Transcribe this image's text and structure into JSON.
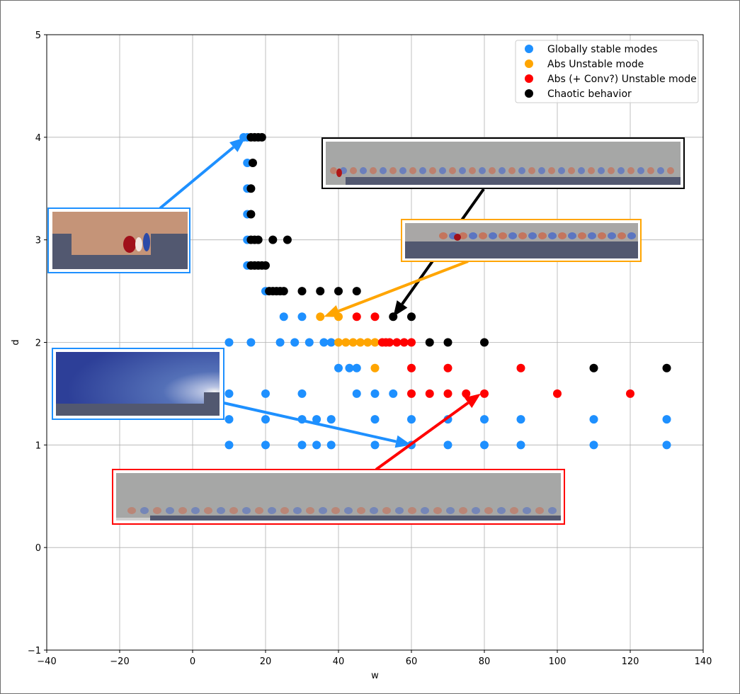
{
  "chart_data": {
    "type": "scatter",
    "title": "",
    "xlabel": "w",
    "ylabel": "d",
    "xlim": [
      -40,
      140
    ],
    "ylim": [
      -1,
      5
    ],
    "xticks": [
      -40,
      -20,
      0,
      20,
      40,
      60,
      80,
      100,
      120,
      140
    ],
    "yticks": [
      -1,
      0,
      1,
      2,
      3,
      4,
      5
    ],
    "xtick_labels": [
      "−40",
      "−20",
      "0",
      "20",
      "40",
      "60",
      "80",
      "100",
      "120",
      "140"
    ],
    "ytick_labels": [
      "−1",
      "0",
      "1",
      "2",
      "3",
      "4",
      "5"
    ],
    "grid": true,
    "legend_position": "top-right",
    "series": [
      {
        "name": "Globally stable modes",
        "color": "#1e90ff",
        "points": [
          [
            10,
            1
          ],
          [
            20,
            1
          ],
          [
            30,
            1
          ],
          [
            34,
            1
          ],
          [
            38,
            1
          ],
          [
            50,
            1
          ],
          [
            60,
            1
          ],
          [
            70,
            1
          ],
          [
            80,
            1
          ],
          [
            90,
            1
          ],
          [
            110,
            1
          ],
          [
            130,
            1
          ],
          [
            10,
            1.25
          ],
          [
            20,
            1.25
          ],
          [
            30,
            1.25
          ],
          [
            34,
            1.25
          ],
          [
            38,
            1.25
          ],
          [
            50,
            1.25
          ],
          [
            60,
            1.25
          ],
          [
            70,
            1.25
          ],
          [
            80,
            1.25
          ],
          [
            90,
            1.25
          ],
          [
            110,
            1.25
          ],
          [
            130,
            1.25
          ],
          [
            10,
            1.5
          ],
          [
            20,
            1.5
          ],
          [
            30,
            1.5
          ],
          [
            45,
            1.5
          ],
          [
            50,
            1.5
          ],
          [
            55,
            1.5
          ],
          [
            40,
            1.75
          ],
          [
            43,
            1.75
          ],
          [
            45,
            1.75
          ],
          [
            10,
            2
          ],
          [
            16,
            2
          ],
          [
            24,
            2
          ],
          [
            28,
            2
          ],
          [
            32,
            2
          ],
          [
            36,
            2
          ],
          [
            38,
            2
          ],
          [
            25,
            2.25
          ],
          [
            30,
            2.25
          ],
          [
            20,
            2.5
          ],
          [
            15,
            2.75
          ],
          [
            15,
            3
          ],
          [
            15,
            3.25
          ],
          [
            15,
            3.5
          ],
          [
            15,
            3.75
          ],
          [
            14,
            4
          ],
          [
            15,
            4
          ]
        ]
      },
      {
        "name": "Abs Unstable mode",
        "color": "#ffa500",
        "points": [
          [
            35,
            2.25
          ],
          [
            40,
            2.25
          ],
          [
            40,
            2
          ],
          [
            42,
            2
          ],
          [
            44,
            2
          ],
          [
            46,
            2
          ],
          [
            48,
            2
          ],
          [
            50,
            2
          ],
          [
            50,
            1.75
          ]
        ]
      },
      {
        "name": "Abs (+ Conv?) Unstable mode",
        "color": "#ff0000",
        "points": [
          [
            45,
            2.25
          ],
          [
            50,
            2.25
          ],
          [
            52,
            2
          ],
          [
            53,
            2
          ],
          [
            54,
            2
          ],
          [
            56,
            2
          ],
          [
            58,
            2
          ],
          [
            60,
            2
          ],
          [
            60,
            1.75
          ],
          [
            70,
            1.75
          ],
          [
            90,
            1.75
          ],
          [
            60,
            1.5
          ],
          [
            65,
            1.5
          ],
          [
            70,
            1.5
          ],
          [
            75,
            1.5
          ],
          [
            80,
            1.5
          ],
          [
            100,
            1.5
          ],
          [
            120,
            1.5
          ]
        ]
      },
      {
        "name": "Chaotic behavior",
        "color": "#000000",
        "points": [
          [
            55,
            2.25
          ],
          [
            60,
            2.25
          ],
          [
            65,
            2
          ],
          [
            70,
            2
          ],
          [
            80,
            2
          ],
          [
            110,
            1.75
          ],
          [
            130,
            1.75
          ],
          [
            21,
            2.5
          ],
          [
            22,
            2.5
          ],
          [
            23,
            2.5
          ],
          [
            24,
            2.5
          ],
          [
            25,
            2.5
          ],
          [
            30,
            2.5
          ],
          [
            35,
            2.5
          ],
          [
            40,
            2.5
          ],
          [
            45,
            2.5
          ],
          [
            16,
            2.75
          ],
          [
            17,
            2.75
          ],
          [
            18,
            2.75
          ],
          [
            19,
            2.75
          ],
          [
            20,
            2.75
          ],
          [
            16,
            3
          ],
          [
            17,
            3
          ],
          [
            18,
            3
          ],
          [
            22,
            3
          ],
          [
            26,
            3
          ],
          [
            16,
            3.25
          ],
          [
            16,
            3.5
          ],
          [
            16.5,
            3.75
          ],
          [
            16,
            4
          ],
          [
            17,
            4
          ],
          [
            18,
            4
          ],
          [
            19,
            4
          ]
        ]
      }
    ],
    "annotations": [
      {
        "name": "inset-stable-cavity",
        "frame_color": "#1e90ff",
        "points_to": [
          14.5,
          4.0
        ],
        "arrow_color": "#1e90ff"
      },
      {
        "name": "inset-chaotic-flow",
        "frame_color": "#000000",
        "points_to": [
          55,
          2.25
        ],
        "arrow_color": "#000000"
      },
      {
        "name": "inset-abs-unstable",
        "frame_color": "#ffa500",
        "points_to": [
          36,
          2.25
        ],
        "arrow_color": "#ffa500"
      },
      {
        "name": "inset-stable-step",
        "frame_color": "#1e90ff",
        "points_to": [
          60,
          1.0
        ],
        "arrow_color": "#1e90ff"
      },
      {
        "name": "inset-conv-unstable",
        "frame_color": "#ff0000",
        "points_to": [
          79,
          1.5
        ],
        "arrow_color": "#ff0000"
      }
    ]
  }
}
